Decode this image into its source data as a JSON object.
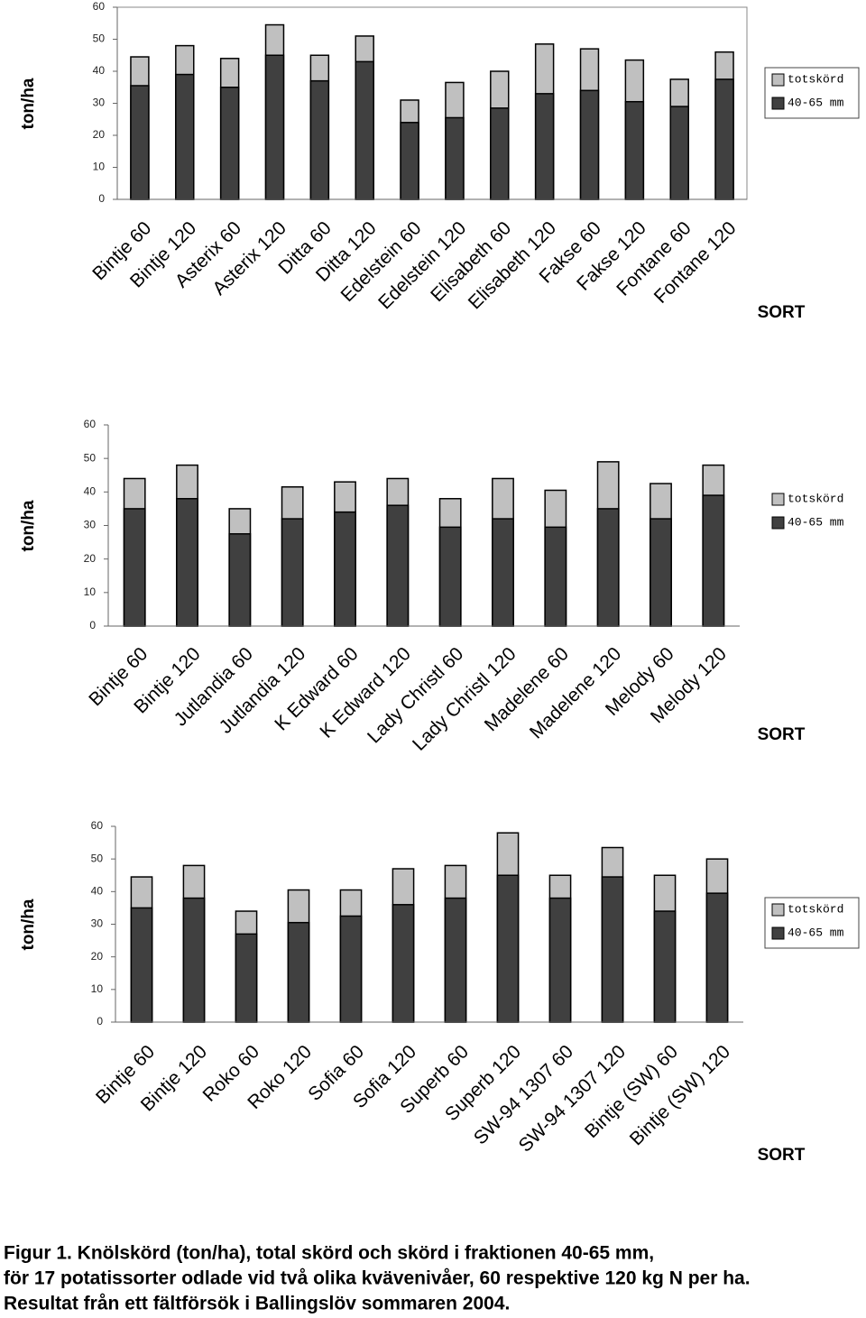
{
  "chart_data": [
    {
      "type": "bar",
      "ylabel": "ton/ha",
      "xlabel": "SORT",
      "categories": [
        "Bintje 60",
        "Bintje 120",
        "Asterix 60",
        "Asterix 120",
        "Ditta 60",
        "Ditta 120",
        "Edelstein 60",
        "Edelstein 120",
        "Elisabeth 60",
        "Elisabeth 120",
        "Fakse 60",
        "Fakse 120",
        "Fontane 60",
        "Fontane 120"
      ],
      "series": [
        {
          "name": "totskörd",
          "color": "#c0c0c0",
          "values": [
            44.5,
            48,
            44,
            54.5,
            45,
            51,
            31,
            36.5,
            40,
            48.5,
            47,
            43.5,
            37.5,
            46
          ]
        },
        {
          "name": "40-65 mm",
          "color": "#404040",
          "values": [
            35.5,
            39,
            35,
            45,
            37,
            43,
            24,
            25.5,
            28.5,
            33,
            34,
            30.5,
            29,
            37.5
          ]
        }
      ],
      "ylim": [
        0,
        60
      ],
      "yticks": [
        0,
        10,
        20,
        30,
        40,
        50,
        60
      ]
    },
    {
      "type": "bar",
      "ylabel": "ton/ha",
      "xlabel": "SORT",
      "categories": [
        "Bintje 60",
        "Bintje 120",
        "Jutlandia 60",
        "Jutlandia 120",
        "K Edward 60",
        "K Edward 120",
        "Lady Christl 60",
        "Lady Christl 120",
        "Madelene 60",
        "Madelene 120",
        "Melody 60",
        "Melody 120"
      ],
      "series": [
        {
          "name": "totskörd",
          "color": "#c0c0c0",
          "values": [
            44,
            48,
            35,
            41.5,
            43,
            44,
            38,
            44,
            40.5,
            49,
            42.5,
            48
          ]
        },
        {
          "name": "40-65 mm",
          "color": "#404040",
          "values": [
            35,
            38,
            27.5,
            32,
            34,
            36,
            29.5,
            32,
            29.5,
            35,
            32,
            39
          ]
        }
      ],
      "ylim": [
        0,
        60
      ],
      "yticks": [
        0,
        10,
        20,
        30,
        40,
        50,
        60
      ]
    },
    {
      "type": "bar",
      "ylabel": "ton/ha",
      "xlabel": "SORT",
      "categories": [
        "Bintje 60",
        "Bintje 120",
        "Roko 60",
        "Roko 120",
        "Sofia 60",
        "Sofia 120",
        "Superb 60",
        "Superb 120",
        "SW-94 1307 60",
        "SW-94 1307 120",
        "Bintje (SW) 60",
        "Bintje (SW) 120"
      ],
      "series": [
        {
          "name": "totskörd",
          "color": "#c0c0c0",
          "values": [
            44.5,
            48,
            34,
            40.5,
            40.5,
            47,
            48,
            58,
            45,
            53.5,
            45,
            50
          ]
        },
        {
          "name": "40-65 mm",
          "color": "#404040",
          "values": [
            35,
            38,
            27,
            30.5,
            32.5,
            36,
            38,
            45,
            38,
            44.5,
            34,
            39.5
          ]
        }
      ],
      "ylim": [
        0,
        60
      ],
      "yticks": [
        0,
        10,
        20,
        30,
        40,
        50,
        60
      ]
    }
  ],
  "caption": [
    "Figur 1. Knölskörd (ton/ha), total skörd och skörd i fraktionen 40-65 mm,",
    "för 17 potatissorter odlade vid två olika kvävenivåer, 60 respektive 120 kg N per ha.",
    "Resultat från ett fältförsök i Ballingslöv sommaren 2004."
  ]
}
